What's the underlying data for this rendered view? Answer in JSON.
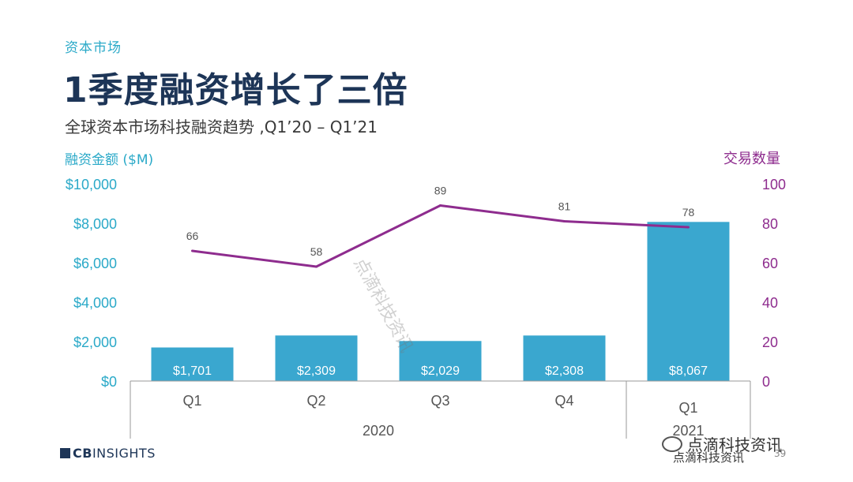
{
  "header": {
    "section": "资本市场",
    "title": "1季度融资增长了三倍",
    "subtitle": "全球资本市场科技融资趋势 ,Q1’20 – Q1’21"
  },
  "chart_data": {
    "type": "bar",
    "categories": [
      "Q1",
      "Q2",
      "Q3",
      "Q4",
      "Q1"
    ],
    "groups": [
      {
        "label": "2020",
        "categories": [
          "Q1",
          "Q2",
          "Q3",
          "Q4"
        ]
      },
      {
        "label": "2021",
        "categories": [
          "Q1"
        ]
      }
    ],
    "series": [
      {
        "name": "融资金额 ($M)",
        "type": "bar",
        "axis": "left",
        "values": [
          1701,
          2309,
          2029,
          2308,
          8067
        ],
        "labels": [
          "$1,701",
          "$2,309",
          "$2,029",
          "$2,308",
          "$8,067"
        ],
        "color": "#3aa7cf"
      },
      {
        "name": "交易数量",
        "type": "line",
        "axis": "right",
        "values": [
          66,
          58,
          89,
          81,
          78
        ],
        "labels": [
          "66",
          "58",
          "89",
          "81",
          "78"
        ],
        "color": "#8e2c8e"
      }
    ],
    "yleft": {
      "label": "融资金额 ($M)",
      "range": [
        0,
        10000
      ],
      "ticks": [
        "$0",
        "$2,000",
        "$4,000",
        "$6,000",
        "$8,000",
        "$10,000"
      ],
      "color": "#2aa9c8"
    },
    "yright": {
      "label": "交易数量",
      "range": [
        0,
        100
      ],
      "ticks": [
        "0",
        "20",
        "40",
        "60",
        "80",
        "100"
      ],
      "color": "#8e2c8e"
    },
    "grid": false,
    "legend": "none"
  },
  "footer": {
    "logo_prefix": "CB",
    "logo_suffix": "INSIGHTS",
    "watermark_diagonal": "点滴科技资讯",
    "watermark_corner": "点滴科技资讯",
    "watermark_corner_small": "点滴科技资讯",
    "page_number": "39"
  }
}
